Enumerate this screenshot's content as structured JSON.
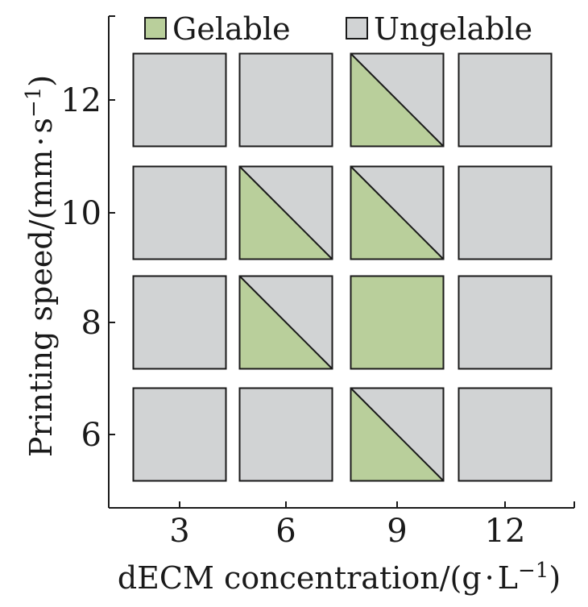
{
  "chart_data": {
    "type": "heatmap",
    "x": {
      "label_main": "dECM concentration/(g",
      "label_mid": "L",
      "label_sup": "−1",
      "label_end": ")",
      "ticks": [
        3,
        6,
        9,
        12
      ],
      "tick_labels": [
        "3",
        "6",
        "9",
        "12"
      ]
    },
    "y": {
      "label_main": "Printing speed/(mm",
      "label_mid": "s",
      "label_sup": "−1",
      "label_end": ")",
      "ticks": [
        6,
        8,
        10,
        12
      ],
      "tick_labels": [
        "6",
        "8",
        "10",
        "12"
      ]
    },
    "legend": {
      "placement": "top",
      "entries": [
        {
          "key": "gelable",
          "label": "Gelable",
          "color": "#b9cf9b"
        },
        {
          "key": "ungelable",
          "label": "Ungelable",
          "color": "#d1d3d4"
        }
      ]
    },
    "cells": [
      {
        "concentration": 3,
        "speed": 12,
        "state": "ungelable"
      },
      {
        "concentration": 6,
        "speed": 12,
        "state": "ungelable"
      },
      {
        "concentration": 9,
        "speed": 12,
        "state": "partial"
      },
      {
        "concentration": 12,
        "speed": 12,
        "state": "ungelable"
      },
      {
        "concentration": 3,
        "speed": 10,
        "state": "ungelable"
      },
      {
        "concentration": 6,
        "speed": 10,
        "state": "partial"
      },
      {
        "concentration": 9,
        "speed": 10,
        "state": "partial"
      },
      {
        "concentration": 12,
        "speed": 10,
        "state": "ungelable"
      },
      {
        "concentration": 3,
        "speed": 8,
        "state": "ungelable"
      },
      {
        "concentration": 6,
        "speed": 8,
        "state": "partial"
      },
      {
        "concentration": 9,
        "speed": 8,
        "state": "gelable"
      },
      {
        "concentration": 12,
        "speed": 8,
        "state": "ungelable"
      },
      {
        "concentration": 3,
        "speed": 6,
        "state": "ungelable"
      },
      {
        "concentration": 6,
        "speed": 6,
        "state": "ungelable"
      },
      {
        "concentration": 9,
        "speed": 6,
        "state": "partial"
      },
      {
        "concentration": 12,
        "speed": 6,
        "state": "ungelable"
      }
    ]
  }
}
